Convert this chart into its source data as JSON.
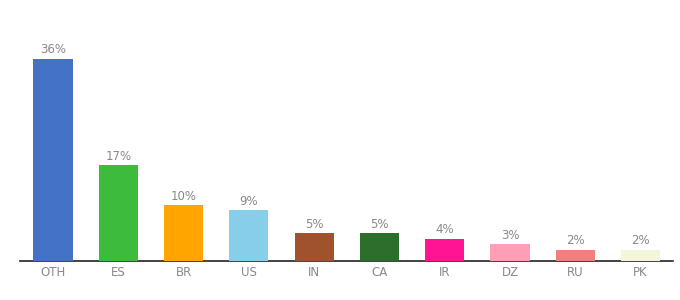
{
  "categories": [
    "OTH",
    "ES",
    "BR",
    "US",
    "IN",
    "CA",
    "IR",
    "DZ",
    "RU",
    "PK"
  ],
  "values": [
    36,
    17,
    10,
    9,
    5,
    5,
    4,
    3,
    2,
    2
  ],
  "bar_colors": [
    "#4472c4",
    "#3dbb3d",
    "#ffa500",
    "#87ceeb",
    "#a0522d",
    "#2d6e2d",
    "#ff1493",
    "#ff9eb5",
    "#f08080",
    "#f5f5dc"
  ],
  "ylim": [
    0,
    40
  ],
  "background_color": "#ffffff",
  "label_fontsize": 8.5,
  "tick_fontsize": 8.5,
  "label_color": "#888888",
  "spine_color": "#222222",
  "bar_width": 0.6
}
